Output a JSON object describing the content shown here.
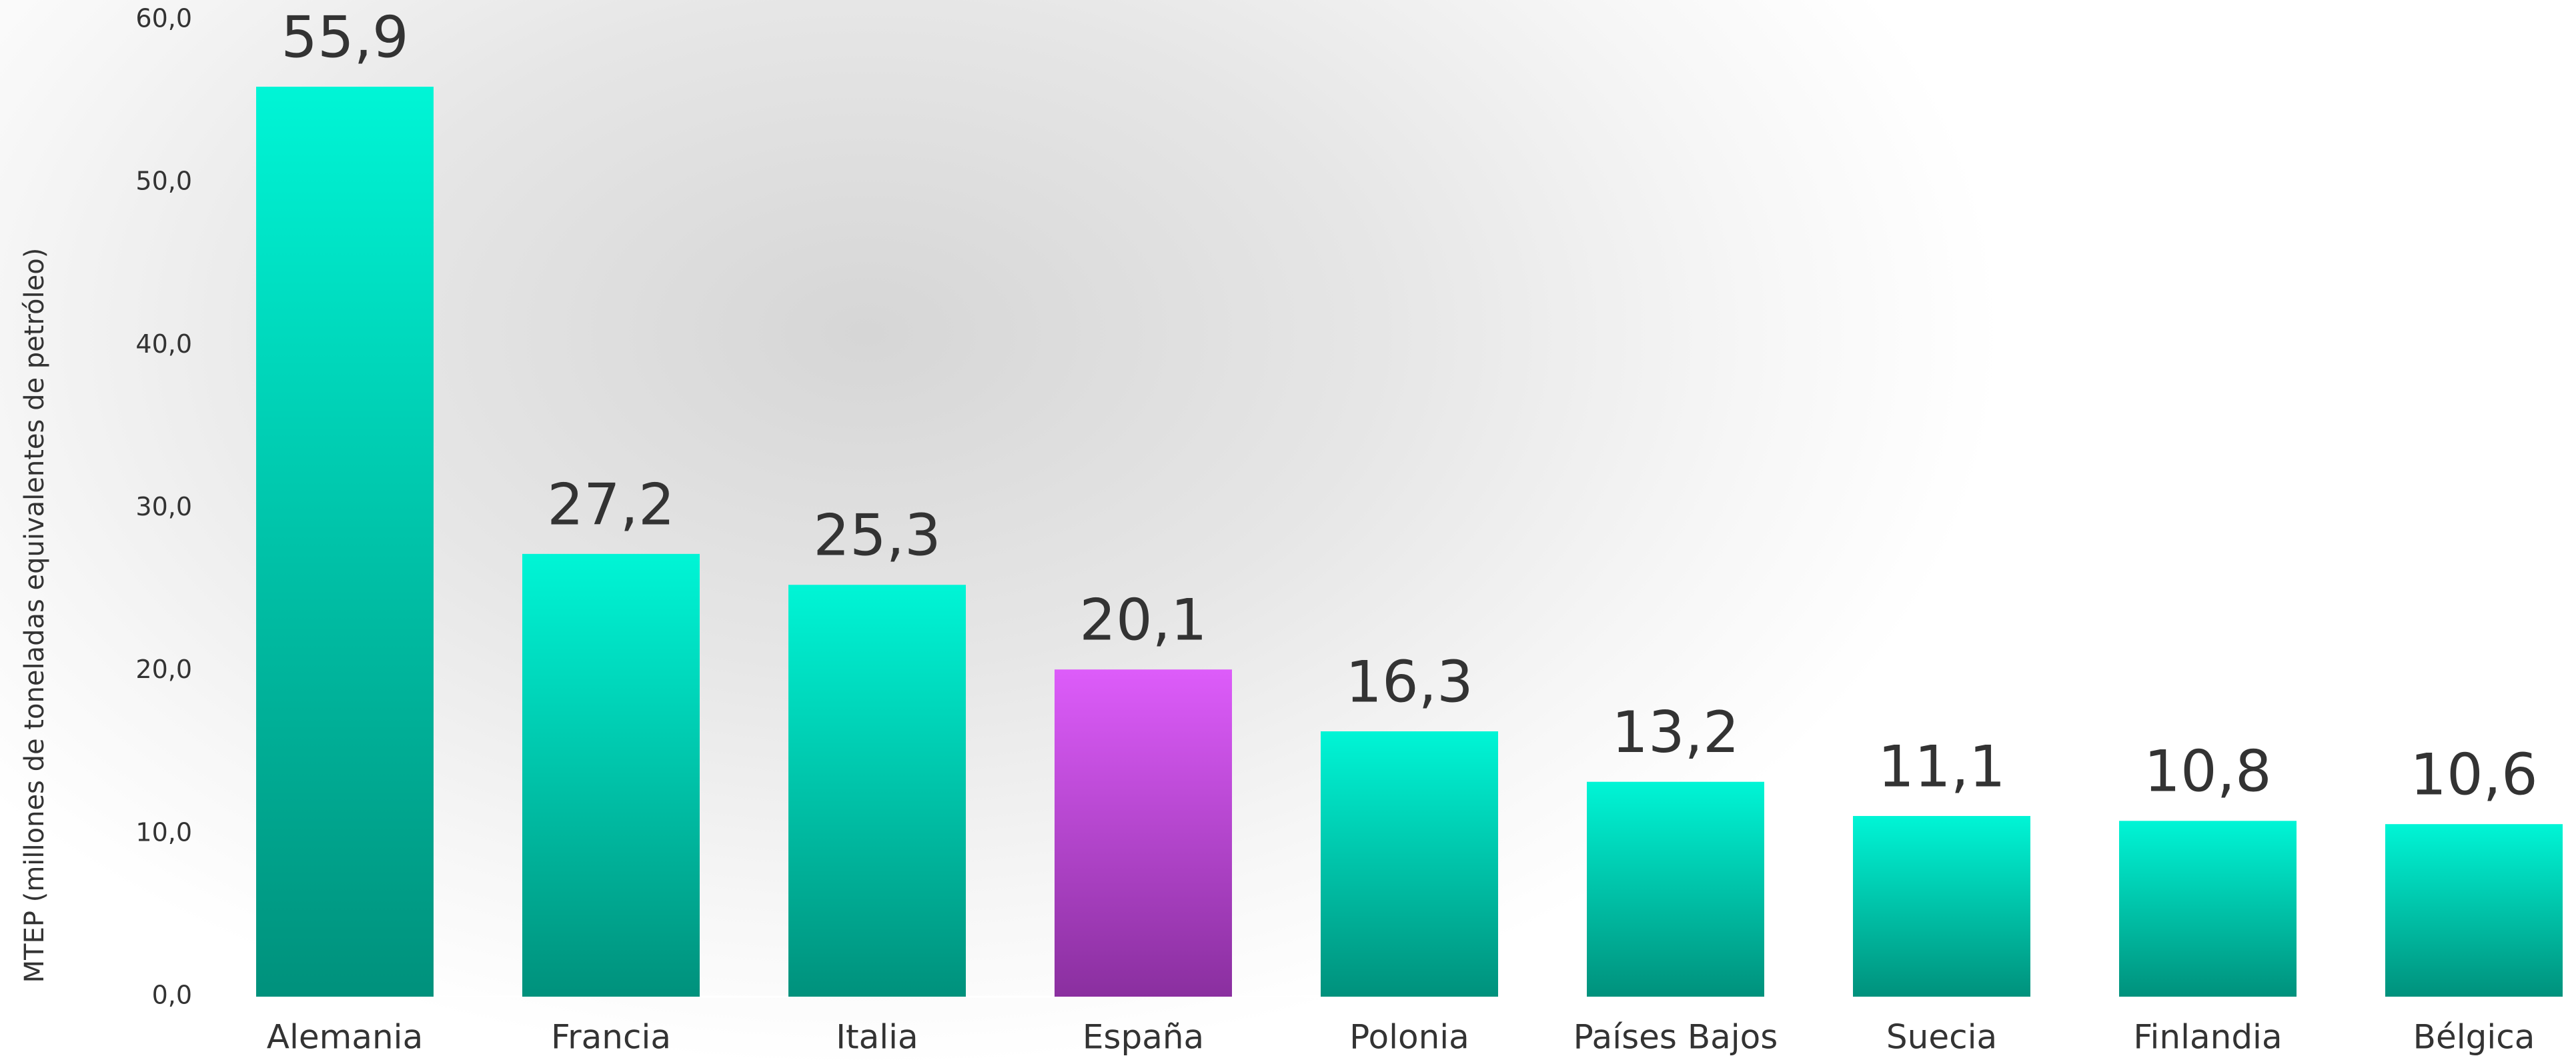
{
  "chart_data": {
    "type": "bar",
    "y_label": "MTEP  (millones de toneladas equivalentes de petróleo)",
    "categories": [
      "Alemania",
      "Francia",
      "Italia",
      "España",
      "Polonia",
      "Países Bajos",
      "Suecia",
      "Finlandia",
      "Bélgica"
    ],
    "values": [
      55.9,
      27.2,
      25.3,
      20.1,
      16.3,
      13.2,
      11.1,
      10.8,
      10.6
    ],
    "value_labels": [
      "55,9",
      "27,2",
      "25,3",
      "20,1",
      "16,3",
      "13,2",
      "11,1",
      "10,8",
      "10,6"
    ],
    "colors": [
      [
        "#00f5d6",
        "#00917c"
      ],
      [
        "#00f5d6",
        "#00917c"
      ],
      [
        "#00f5d6",
        "#00917c"
      ],
      [
        "#dd5cfa",
        "#8a2f9f"
      ],
      [
        "#00f5d6",
        "#00917c"
      ],
      [
        "#00f5d6",
        "#00917c"
      ],
      [
        "#00f5d6",
        "#00917c"
      ],
      [
        "#00f5d6",
        "#00917c"
      ],
      [
        "#00f5d6",
        "#00917c"
      ]
    ],
    "ylim": [
      0,
      60
    ],
    "yticks": [
      {
        "value": 0,
        "label": "0,0"
      },
      {
        "value": 10,
        "label": "10,0"
      },
      {
        "value": 20,
        "label": "20,0"
      },
      {
        "value": 30,
        "label": "30,0"
      },
      {
        "value": 40,
        "label": "40,0"
      },
      {
        "value": 50,
        "label": "50,0"
      },
      {
        "value": 60,
        "label": "60,0"
      }
    ],
    "grid": false
  }
}
